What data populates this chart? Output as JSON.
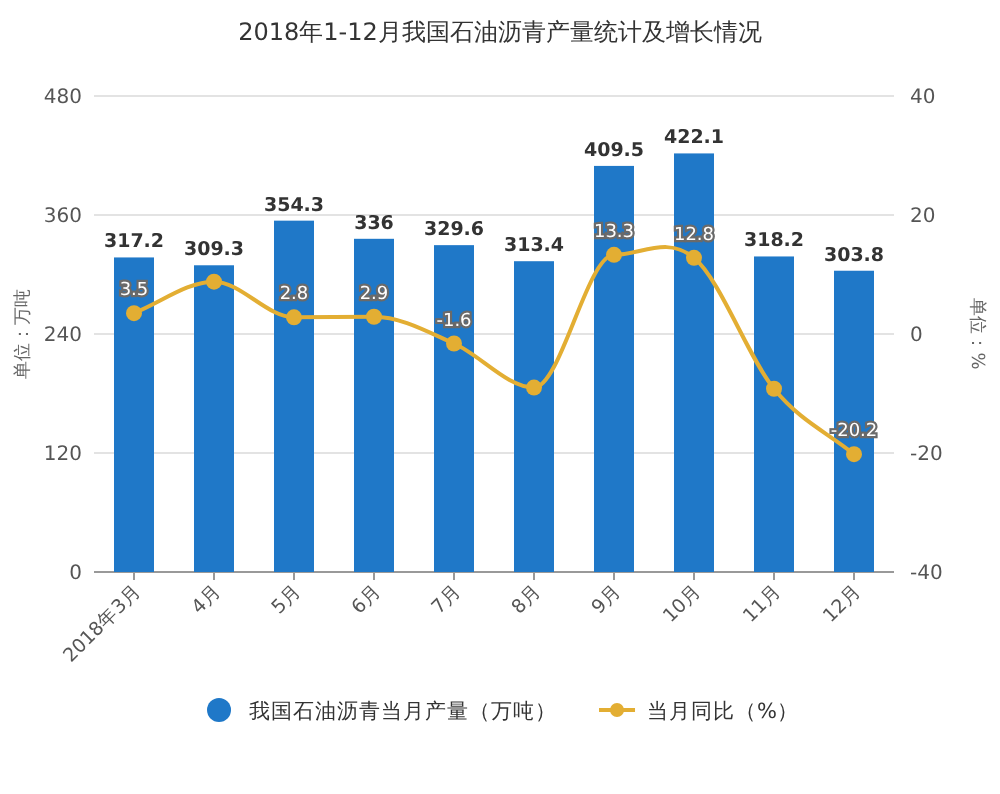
{
  "chart_data": {
    "type": "bar",
    "title": "2018年1-12月我国石油沥青产量统计及增长情况",
    "ylabel": "单位：万吨",
    "y2label": "单位：%",
    "categories": [
      "2018年3月",
      "4月",
      "5月",
      "6月",
      "7月",
      "8月",
      "9月",
      "10月",
      "11月",
      "12月"
    ],
    "series": [
      {
        "name": "我国石油沥青当月产量（万吨）",
        "color": "#1f78c8",
        "values": [
          317.2,
          309.3,
          354.3,
          336,
          329.6,
          313.4,
          409.5,
          422.1,
          318.2,
          303.8
        ],
        "value_labels": [
          "317.2",
          "309.3",
          "354.3",
          "336",
          "329.6",
          "313.4",
          "409.5",
          "422.1",
          "318.2",
          "303.8"
        ]
      },
      {
        "name": "当月同比（%）",
        "type": "line",
        "axis": "y2",
        "color": "#e3ae33",
        "marker": "circle",
        "values": [
          3.5,
          8.8,
          2.8,
          2.9,
          -1.6,
          -9,
          13.3,
          12.8,
          -9.2,
          -20.2
        ],
        "value_labels": [
          "3.5",
          null,
          "2.8",
          "2.9",
          "-1.6",
          null,
          "13.3",
          "12.8",
          null,
          "-20.2"
        ]
      }
    ],
    "ylim": [
      0,
      480
    ],
    "yticks": [
      0,
      120,
      240,
      360,
      480
    ],
    "y2lim": [
      -40,
      40
    ],
    "y2ticks": [
      -40,
      -20,
      0,
      20,
      40
    ],
    "grid": "y",
    "legend": "bottom"
  }
}
